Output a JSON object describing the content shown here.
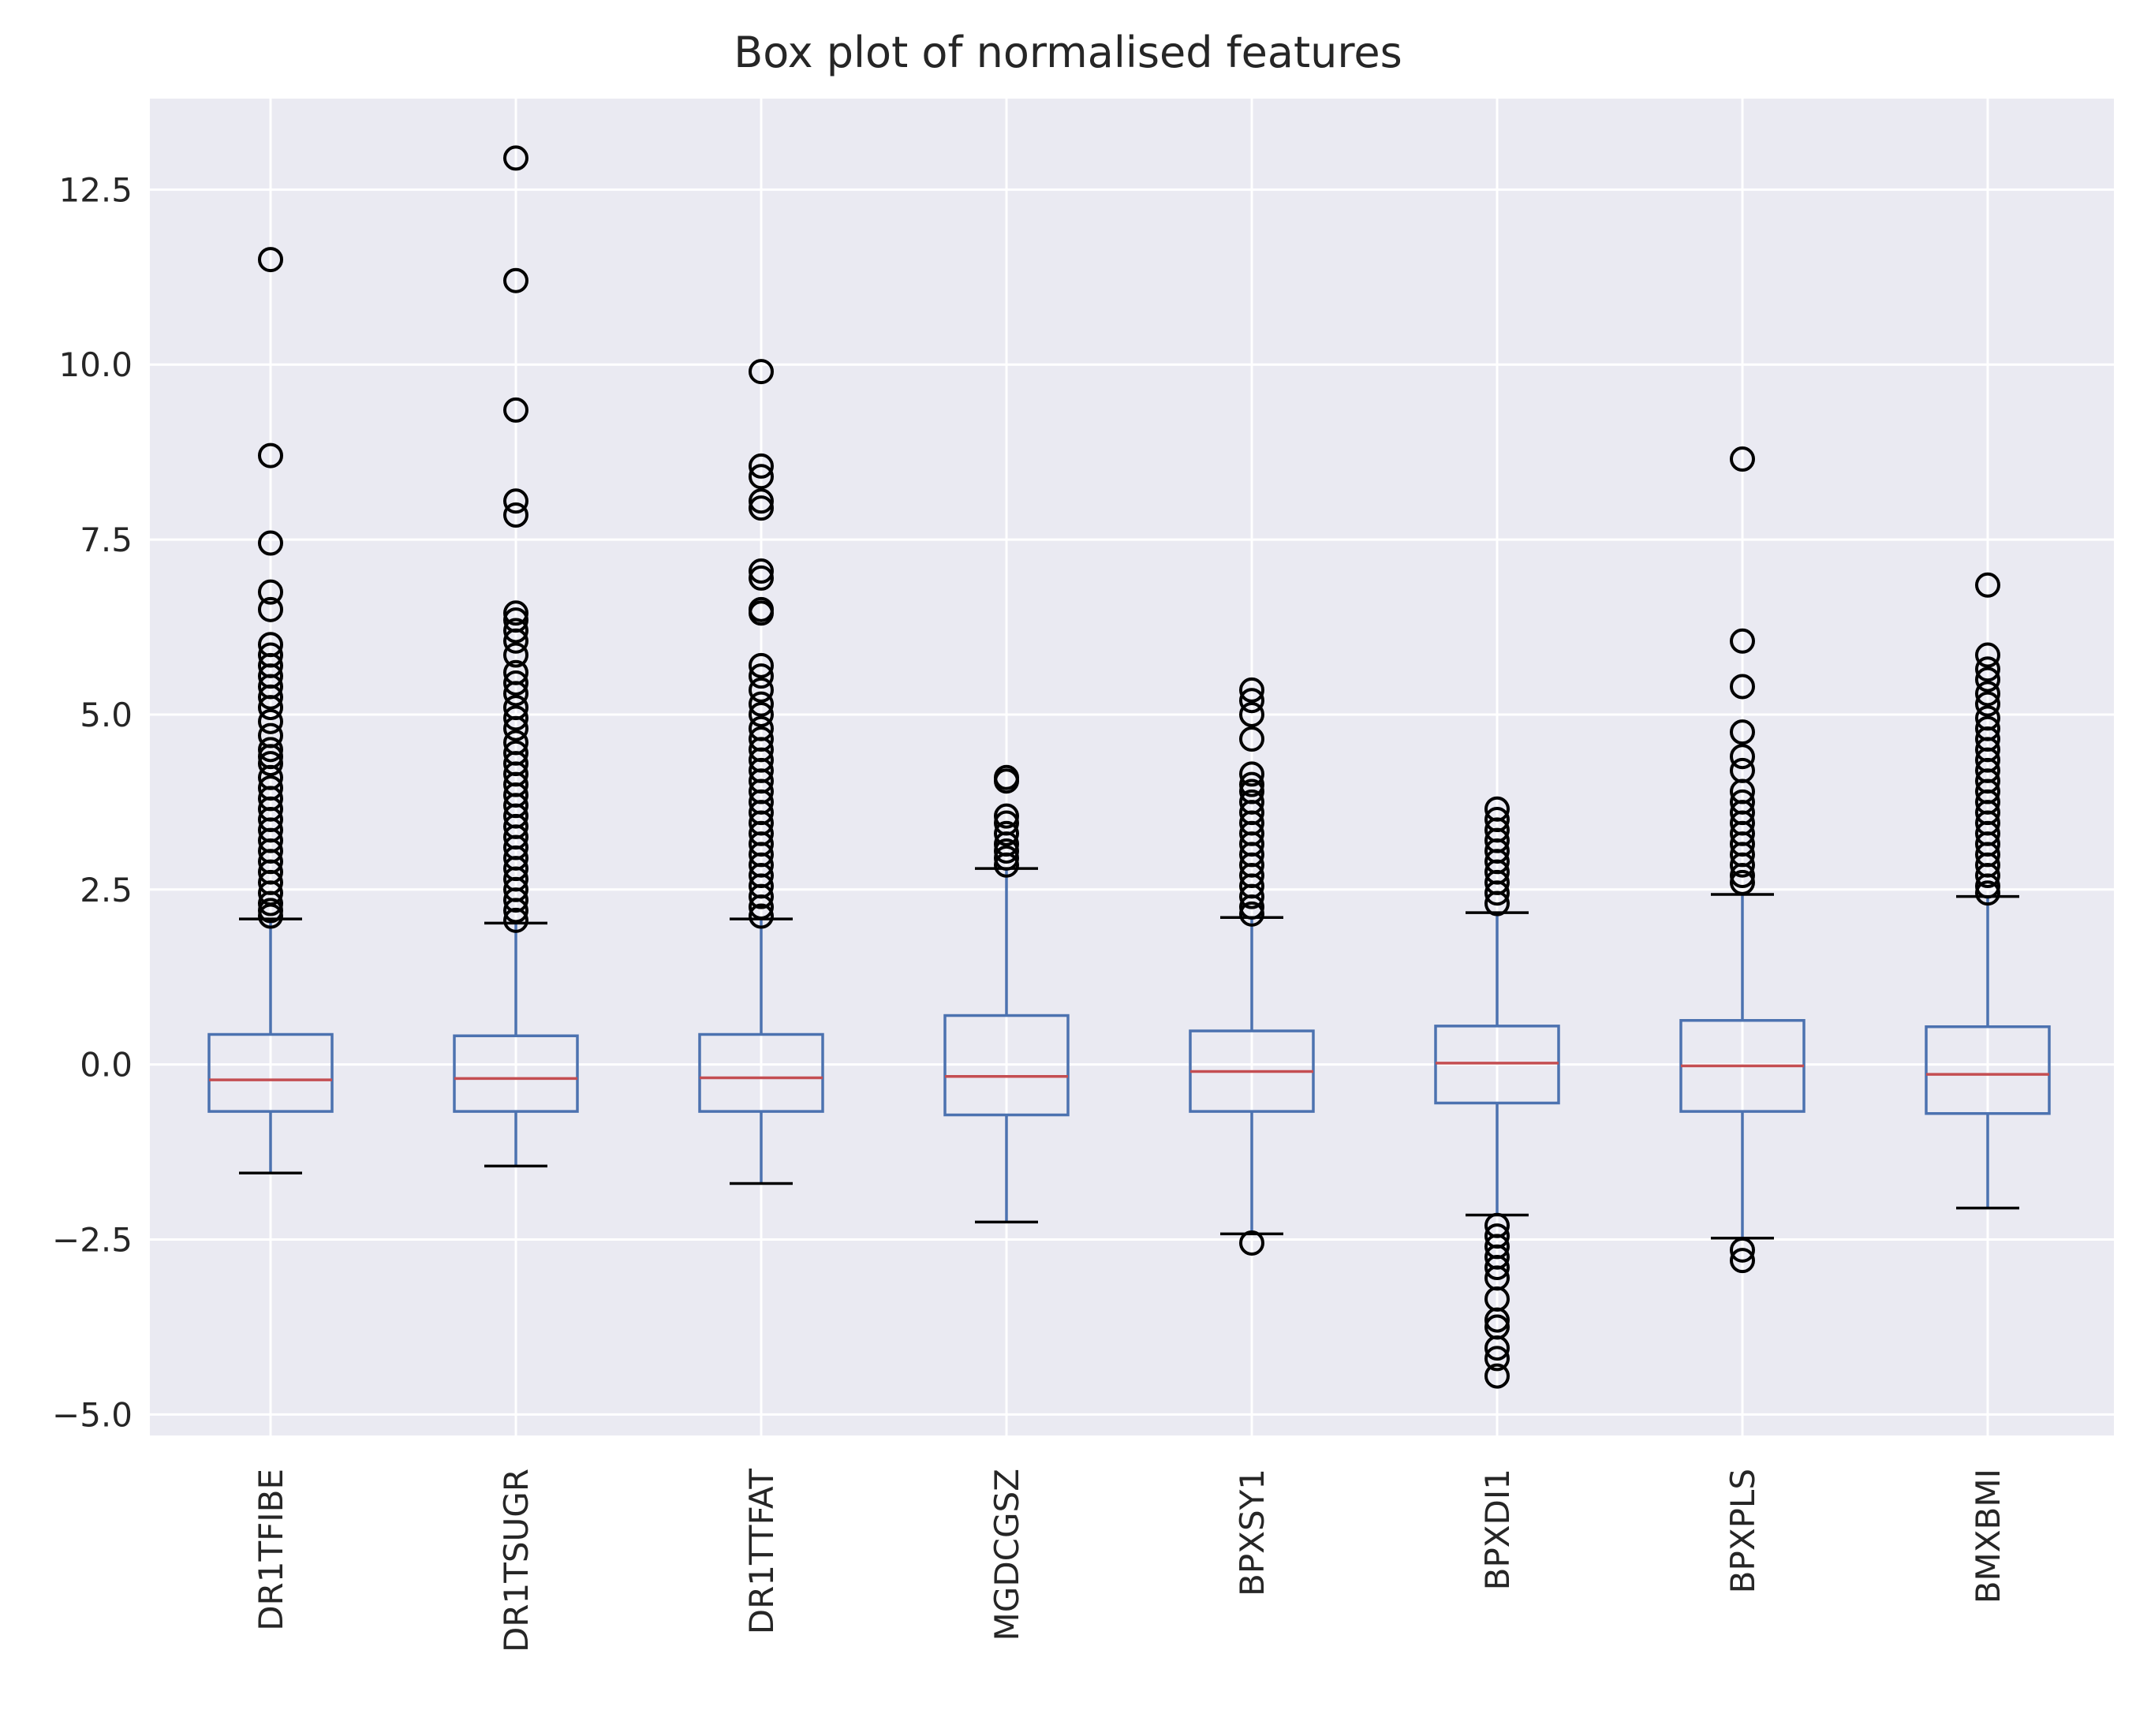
{
  "chart_data": {
    "type": "box",
    "title": "Box plot of normalised features",
    "xlabel": "",
    "ylabel": "",
    "ylim": [
      -5.3,
      13.8
    ],
    "yticks": [
      -5.0,
      -2.5,
      0.0,
      2.5,
      5.0,
      7.5,
      10.0,
      12.5
    ],
    "ytick_labels": [
      "−5.0",
      "−2.5",
      "0.0",
      "2.5",
      "5.0",
      "7.5",
      "10.0",
      "12.5"
    ],
    "grid": true,
    "categories": [
      "DR1TFIBE",
      "DR1TSUGR",
      "DR1TTFAT",
      "MGDCGSZ",
      "BPXSY1",
      "BPXDI1",
      "BPXPLS",
      "BMXBMI"
    ],
    "boxes": [
      {
        "whisker_low": -1.55,
        "q1": -0.67,
        "median": -0.22,
        "q3": 0.43,
        "whisker_high": 2.08,
        "outliers": [
          11.5,
          8.7,
          7.45,
          6.75,
          6.5,
          6.0,
          5.85,
          5.7,
          5.55,
          5.4,
          5.25,
          5.1,
          4.9,
          4.7,
          4.5,
          4.4,
          4.3,
          4.1,
          3.95,
          3.8,
          3.65,
          3.5,
          3.35,
          3.2,
          3.05,
          2.9,
          2.75,
          2.6,
          2.45,
          2.3,
          2.2,
          2.12
        ]
      },
      {
        "whisker_low": -1.45,
        "q1": -0.67,
        "median": -0.2,
        "q3": 0.41,
        "whisker_high": 2.02,
        "outliers": [
          12.95,
          11.2,
          9.35,
          8.05,
          7.85,
          6.45,
          6.35,
          6.2,
          6.05,
          5.85,
          5.6,
          5.45,
          5.3,
          5.1,
          4.95,
          4.8,
          4.6,
          4.45,
          4.3,
          4.15,
          4.0,
          3.85,
          3.7,
          3.55,
          3.4,
          3.25,
          3.1,
          2.95,
          2.8,
          2.65,
          2.5,
          2.35,
          2.2,
          2.06
        ]
      },
      {
        "whisker_low": -1.7,
        "q1": -0.67,
        "median": -0.19,
        "q3": 0.43,
        "whisker_high": 2.08,
        "outliers": [
          9.9,
          8.55,
          8.4,
          8.05,
          7.95,
          7.05,
          6.95,
          6.5,
          6.45,
          5.7,
          5.55,
          5.35,
          5.15,
          5.0,
          4.8,
          4.65,
          4.5,
          4.35,
          4.2,
          4.05,
          3.9,
          3.75,
          3.6,
          3.45,
          3.3,
          3.15,
          3.0,
          2.85,
          2.7,
          2.55,
          2.4,
          2.25,
          2.12
        ]
      },
      {
        "whisker_low": -2.25,
        "q1": -0.72,
        "median": -0.17,
        "q3": 0.7,
        "whisker_high": 2.8,
        "outliers": [
          4.1,
          4.05,
          3.55,
          3.45,
          3.3,
          3.15,
          3.05,
          2.95,
          2.85
        ]
      },
      {
        "whisker_low": -2.42,
        "q1": -0.67,
        "median": -0.1,
        "q3": 0.48,
        "whisker_high": 2.1,
        "outliers": [
          5.35,
          5.2,
          5.0,
          4.65,
          4.15,
          4.0,
          3.9,
          3.75,
          3.6,
          3.45,
          3.3,
          3.15,
          3.0,
          2.85,
          2.7,
          2.55,
          2.4,
          2.25,
          2.15,
          -2.55
        ]
      },
      {
        "whisker_low": -2.15,
        "q1": -0.55,
        "median": 0.02,
        "q3": 0.55,
        "whisker_high": 2.17,
        "outliers": [
          3.65,
          3.5,
          3.35,
          3.2,
          3.05,
          2.9,
          2.75,
          2.6,
          2.45,
          2.3,
          -2.3,
          -2.45,
          -2.6,
          -2.75,
          -2.9,
          -3.05,
          -3.35,
          -3.65,
          -3.75,
          -4.05,
          -4.2,
          -4.45
        ]
      },
      {
        "whisker_low": -2.48,
        "q1": -0.67,
        "median": -0.02,
        "q3": 0.63,
        "whisker_high": 2.43,
        "outliers": [
          8.65,
          6.05,
          5.4,
          4.75,
          4.4,
          4.2,
          3.9,
          3.75,
          3.6,
          3.45,
          3.3,
          3.15,
          3.0,
          2.85,
          2.7,
          2.6,
          -2.65,
          -2.8
        ]
      },
      {
        "whisker_low": -2.05,
        "q1": -0.7,
        "median": -0.14,
        "q3": 0.54,
        "whisker_high": 2.4,
        "outliers": [
          6.85,
          5.85,
          5.65,
          5.5,
          5.3,
          5.15,
          4.95,
          4.8,
          4.65,
          4.5,
          4.35,
          4.2,
          4.05,
          3.9,
          3.75,
          3.6,
          3.45,
          3.3,
          3.15,
          3.0,
          2.85,
          2.7,
          2.55,
          2.45
        ]
      }
    ],
    "colors": {
      "background": "#eaeaf2",
      "grid": "#ffffff",
      "box": "#4c72b0",
      "median": "#c44e52",
      "caps": "#000000",
      "outlier": "#000000"
    }
  }
}
